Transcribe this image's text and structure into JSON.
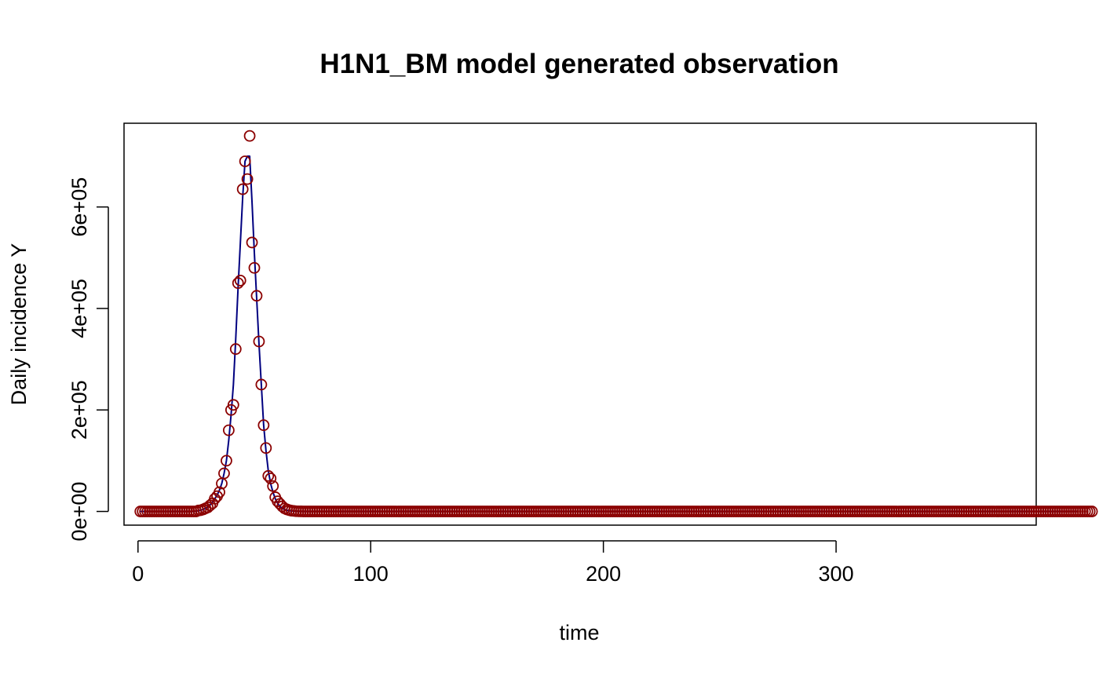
{
  "chart_data": {
    "type": "scatter",
    "title": "H1N1_BM model generated observation",
    "xlabel": "time",
    "ylabel": "Daily incidence Y",
    "xlim": [
      -6,
      386
    ],
    "ylim": [
      -27000,
      765000
    ],
    "x_ticks": [
      0,
      100,
      200,
      300
    ],
    "x_tick_labels": [
      "0",
      "100",
      "200",
      "300"
    ],
    "y_ticks": [
      0,
      200000,
      400000,
      600000
    ],
    "y_tick_labels": [
      "0e+00",
      "2e+05",
      "4e+05",
      "6e+05"
    ],
    "grid": false,
    "legend": "none",
    "series": [
      {
        "style": "points",
        "marker": "open-circle",
        "color": "#8b0000",
        "x_start": 1,
        "values": [
          0,
          0,
          0,
          0,
          0,
          0,
          0,
          0,
          0,
          0,
          0,
          0,
          0,
          0,
          0,
          0,
          0,
          0,
          0,
          0,
          0,
          0,
          0,
          0,
          0,
          2000,
          2500,
          4000,
          6000,
          8000,
          12000,
          16000,
          25000,
          30000,
          38000,
          55000,
          75000,
          100000,
          160000,
          200000,
          210000,
          320000,
          450000,
          455000,
          635000,
          690000,
          655000,
          740000,
          530000,
          480000,
          425000,
          335000,
          250000,
          170000,
          125000,
          70000,
          65000,
          50000,
          28000,
          20000,
          15000,
          10000,
          6000,
          4000,
          2500,
          1500,
          1000,
          500,
          300,
          200,
          0,
          0,
          0,
          0,
          0,
          0,
          0,
          0,
          0,
          0,
          0,
          0,
          0,
          0,
          0,
          0,
          0,
          0,
          0,
          0,
          0,
          0,
          0,
          0,
          0,
          0,
          0,
          0,
          0,
          0,
          0,
          0,
          0,
          0,
          0,
          0,
          0,
          0,
          0,
          0,
          0,
          0,
          0,
          0,
          0,
          0,
          0,
          0,
          0,
          0,
          0,
          0,
          0,
          0,
          0,
          0,
          0,
          0,
          0,
          0,
          0,
          0,
          0,
          0,
          0,
          0,
          0,
          0,
          0,
          0,
          0,
          0,
          0,
          0,
          0,
          0,
          0,
          0,
          0,
          0,
          0,
          0,
          0,
          0,
          0,
          0,
          0,
          0,
          0,
          0,
          0,
          0,
          0,
          0,
          0,
          0,
          0,
          0,
          0,
          0,
          0,
          0,
          0,
          0,
          0,
          0,
          0,
          0,
          0,
          0,
          0,
          0,
          0,
          0,
          0,
          0,
          0,
          0,
          0,
          0,
          0,
          0,
          0,
          0,
          0,
          0,
          0,
          0,
          0,
          0,
          0,
          0,
          0,
          0,
          0,
          0,
          0,
          0,
          0,
          0,
          0,
          0,
          0,
          0,
          0,
          0,
          0,
          0,
          0,
          0,
          0,
          0,
          0,
          0,
          0,
          0,
          0,
          0,
          0,
          0,
          0,
          0,
          0,
          0,
          0,
          0,
          0,
          0,
          0,
          0,
          0,
          0,
          0,
          0,
          0,
          0,
          0,
          0,
          0,
          0,
          0,
          0,
          0,
          0,
          0,
          0,
          0,
          0,
          0,
          0,
          0,
          0,
          0,
          0,
          0,
          0,
          0,
          0,
          0,
          0,
          0,
          0,
          0,
          0,
          0,
          0,
          0,
          0,
          0,
          0,
          0,
          0,
          0,
          0,
          0,
          0,
          0,
          0,
          0,
          0,
          0,
          0,
          0,
          0,
          0,
          0,
          0,
          0,
          0,
          0,
          0,
          0,
          0,
          0,
          0,
          0,
          0,
          0,
          0,
          0,
          0,
          0,
          0,
          0,
          0,
          0,
          0,
          0,
          0,
          0,
          0,
          0,
          0,
          0,
          0,
          0,
          0,
          0,
          0,
          0,
          0,
          0,
          0,
          0,
          0,
          0,
          0,
          0,
          0,
          0,
          0,
          0,
          0,
          0,
          0,
          0,
          0,
          0,
          0,
          0,
          0,
          0,
          0,
          0,
          0,
          0,
          0,
          0,
          0,
          0,
          0,
          0,
          0,
          0,
          0,
          0,
          0,
          0,
          0,
          0,
          0,
          0,
          0,
          0,
          0,
          0,
          0,
          0,
          0,
          0,
          0,
          0,
          0,
          0,
          0,
          0,
          0,
          0,
          0,
          0,
          0,
          0,
          0,
          0,
          0,
          0,
          0,
          0,
          0,
          0,
          0,
          0,
          0,
          0,
          0,
          0,
          0,
          0,
          0,
          0
        ]
      },
      {
        "style": "line",
        "color": "#000080",
        "x_start": 1,
        "values": [
          0,
          0,
          0,
          0,
          0,
          0,
          0,
          0,
          0,
          0,
          0,
          0,
          0,
          0,
          0,
          0,
          0,
          0,
          0,
          0,
          0,
          0,
          0,
          0,
          500,
          1500,
          2500,
          4000,
          6000,
          9000,
          13000,
          18000,
          25000,
          32000,
          42000,
          55000,
          75000,
          100000,
          140000,
          190000,
          250000,
          340000,
          440000,
          530000,
          620000,
          690000,
          700000,
          700000,
          610000,
          510000,
          420000,
          330000,
          250000,
          170000,
          120000,
          80000,
          55000,
          38000,
          25000,
          16000,
          10000,
          6000,
          4000,
          2500,
          1500,
          900,
          500,
          300,
          200,
          100,
          0,
          0,
          0,
          0,
          0,
          0,
          0,
          0,
          0,
          0,
          0,
          0,
          0,
          0,
          0,
          0,
          0,
          0,
          0,
          0,
          0,
          0,
          0,
          0,
          0,
          0,
          0,
          0,
          0,
          0,
          0,
          0,
          0,
          0,
          0,
          0,
          0,
          0,
          0,
          0,
          0,
          0,
          0,
          0,
          0,
          0,
          0,
          0,
          0,
          0,
          0,
          0,
          0,
          0,
          0,
          0,
          0,
          0,
          0,
          0,
          0,
          0,
          0,
          0,
          0,
          0,
          0,
          0,
          0,
          0,
          0,
          0,
          0,
          0,
          0,
          0,
          0,
          0,
          0,
          0,
          0,
          0,
          0,
          0,
          0,
          0,
          0,
          0,
          0,
          0,
          0,
          0,
          0,
          0,
          0,
          0,
          0,
          0,
          0,
          0,
          0,
          0,
          0,
          0,
          0,
          0,
          0,
          0,
          0,
          0,
          0,
          0,
          0,
          0,
          0,
          0,
          0,
          0,
          0,
          0,
          0,
          0,
          0,
          0,
          0,
          0,
          0,
          0,
          0,
          0,
          0,
          0,
          0,
          0,
          0,
          0,
          0,
          0,
          0,
          0,
          0,
          0,
          0,
          0,
          0,
          0,
          0,
          0,
          0,
          0,
          0,
          0,
          0,
          0,
          0,
          0,
          0,
          0,
          0,
          0,
          0,
          0,
          0,
          0,
          0,
          0,
          0,
          0,
          0,
          0,
          0,
          0,
          0,
          0,
          0,
          0,
          0,
          0,
          0,
          0,
          0,
          0,
          0,
          0,
          0,
          0,
          0,
          0,
          0,
          0,
          0,
          0,
          0,
          0,
          0,
          0,
          0,
          0,
          0,
          0,
          0,
          0,
          0,
          0,
          0,
          0,
          0,
          0,
          0,
          0,
          0,
          0,
          0,
          0,
          0,
          0,
          0,
          0,
          0,
          0,
          0,
          0,
          0,
          0,
          0,
          0,
          0,
          0,
          0,
          0,
          0,
          0,
          0,
          0,
          0,
          0,
          0,
          0,
          0,
          0,
          0,
          0,
          0,
          0,
          0,
          0,
          0,
          0,
          0,
          0,
          0,
          0,
          0,
          0,
          0,
          0,
          0,
          0,
          0,
          0,
          0,
          0,
          0,
          0,
          0,
          0,
          0,
          0,
          0,
          0,
          0,
          0,
          0,
          0,
          0,
          0,
          0,
          0,
          0,
          0,
          0,
          0,
          0,
          0,
          0,
          0,
          0,
          0,
          0,
          0,
          0,
          0,
          0,
          0,
          0,
          0,
          0,
          0,
          0,
          0,
          0,
          0,
          0,
          0,
          0,
          0,
          0,
          0,
          0,
          0,
          0,
          0,
          0,
          0,
          0,
          0,
          0,
          0,
          0,
          0,
          0,
          0,
          0,
          0,
          0,
          0,
          0,
          0,
          0,
          0,
          0,
          0,
          0,
          0
        ]
      }
    ]
  }
}
